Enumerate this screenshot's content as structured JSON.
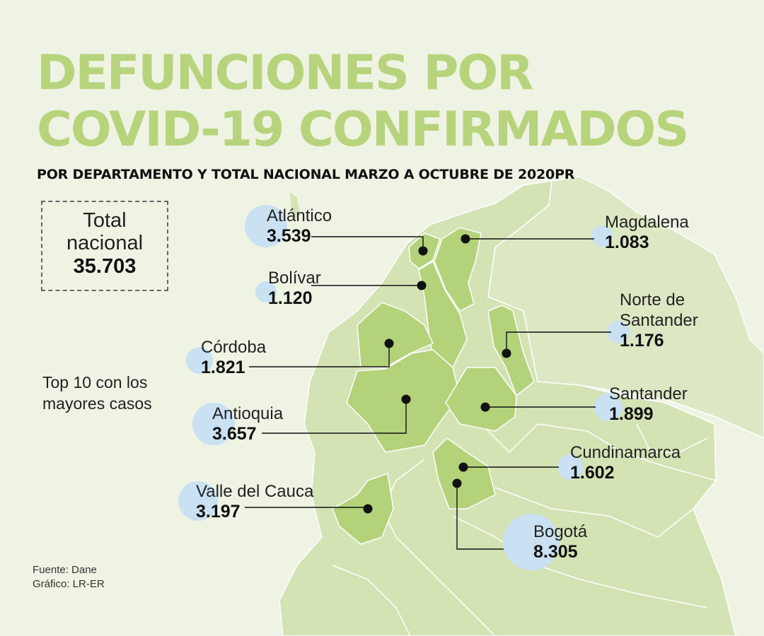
{
  "title_line1": "DEFUNCIONES POR",
  "title_line2": "COVID-19 CONFIRMADOS",
  "subtitle": "POR DEPARTAMENTO Y TOTAL NACIONAL MARZO A OCTUBRE DE 2020PR",
  "total": {
    "label_line1": "Total",
    "label_line2": "nacional",
    "value": "35.703"
  },
  "top10_note": "Top 10 con los mayores casos",
  "source": "Fuente: Dane",
  "graphic": "Gráfico: LR-ER",
  "colors": {
    "title": "#b7d37b",
    "highlight_region": "#b3d27a",
    "base_region": "#d4e3b4",
    "bubble": "#c9e1f2",
    "background": "#eef3e4"
  },
  "departments": [
    {
      "name": "Atlántico",
      "value": 3539,
      "value_label": "3.539"
    },
    {
      "name": "Magdalena",
      "value": 1083,
      "value_label": "1.083"
    },
    {
      "name": "Bolívar",
      "value": 1120,
      "value_label": "1.120"
    },
    {
      "name": "Norte de Santander",
      "name_line1": "Norte de",
      "name_line2": "Santander",
      "value": 1176,
      "value_label": "1.176"
    },
    {
      "name": "Córdoba",
      "value": 1821,
      "value_label": "1.821"
    },
    {
      "name": "Santander",
      "value": 1899,
      "value_label": "1.899"
    },
    {
      "name": "Antioquia",
      "value": 3657,
      "value_label": "3.657"
    },
    {
      "name": "Cundinamarca",
      "value": 1602,
      "value_label": "1.602"
    },
    {
      "name": "Valle del Cauca",
      "value": 3197,
      "value_label": "3.197"
    },
    {
      "name": "Bogotá",
      "value": 8305,
      "value_label": "8.305"
    }
  ]
}
